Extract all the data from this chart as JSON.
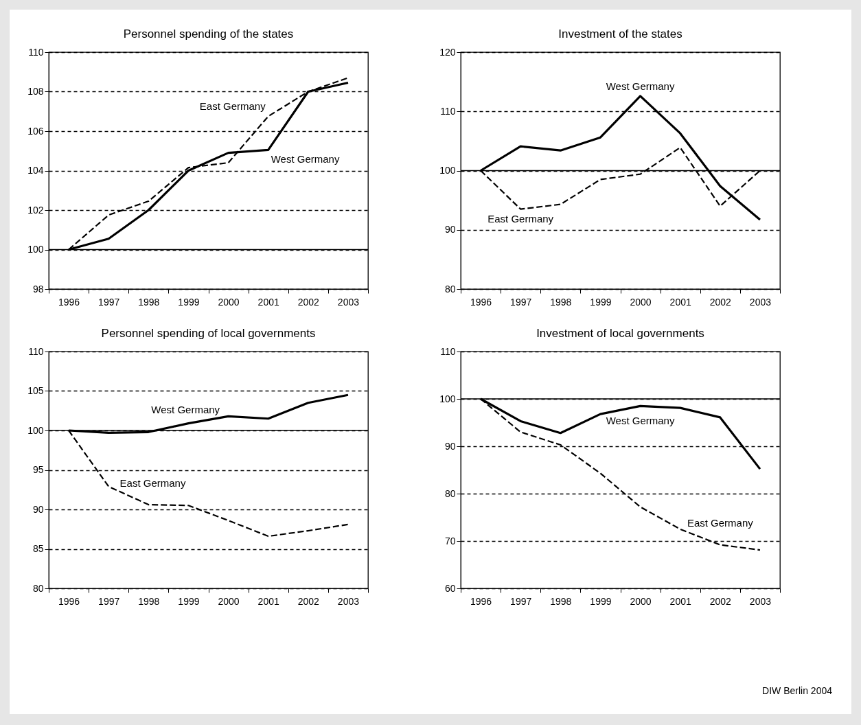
{
  "chart_data": [
    {
      "type": "line",
      "title": "Personnel spending of the states",
      "categories": [
        "1996",
        "1997",
        "1998",
        "1999",
        "2000",
        "2001",
        "2002",
        "2003"
      ],
      "ylim": [
        98,
        110
      ],
      "yticks": [
        98,
        100,
        102,
        104,
        106,
        108,
        110
      ],
      "grid": "y",
      "ref_lines": [
        {
          "axis": "y",
          "value": 100,
          "color": "#000000",
          "line_style": "solid"
        }
      ],
      "series": [
        {
          "name": "West Germany",
          "color": "#000000",
          "line_style": "solid",
          "values": [
            100,
            100.55,
            102.0,
            104.0,
            104.9,
            105.05,
            108.0,
            108.45
          ]
        },
        {
          "name": "East Germany",
          "color": "#000000",
          "line_style": "dashed",
          "values": [
            100,
            101.75,
            102.45,
            104.15,
            104.4,
            106.75,
            108.0,
            108.7
          ]
        }
      ]
    },
    {
      "type": "line",
      "title": "Investment of the states",
      "categories": [
        "1996",
        "1997",
        "1998",
        "1999",
        "2000",
        "2001",
        "2002",
        "2003"
      ],
      "ylim": [
        80,
        120
      ],
      "yticks": [
        80,
        90,
        100,
        110,
        120
      ],
      "grid": "y",
      "ref_lines": [
        {
          "axis": "y",
          "value": 100,
          "color": "#000000",
          "line_style": "solid"
        }
      ],
      "series": [
        {
          "name": "West Germany",
          "color": "#000000",
          "line_style": "solid",
          "values": [
            100,
            104.1,
            103.4,
            105.6,
            112.6,
            106.3,
            97.4,
            91.7
          ]
        },
        {
          "name": "East Germany",
          "color": "#000000",
          "line_style": "dashed",
          "values": [
            100,
            93.5,
            94.3,
            98.5,
            99.4,
            103.9,
            94.0,
            100.0
          ]
        }
      ]
    },
    {
      "type": "line",
      "title": "Personnel spending of local governments",
      "categories": [
        "1996",
        "1997",
        "1998",
        "1999",
        "2000",
        "2001",
        "2002",
        "2003"
      ],
      "ylim": [
        80,
        110
      ],
      "yticks": [
        80,
        85,
        90,
        95,
        100,
        105,
        110
      ],
      "grid": "y",
      "ref_lines": [
        {
          "axis": "y",
          "value": 100,
          "color": "#000000",
          "line_style": "solid"
        }
      ],
      "series": [
        {
          "name": "West Germany",
          "color": "#000000",
          "line_style": "solid",
          "values": [
            100,
            99.7,
            99.8,
            100.9,
            101.8,
            101.5,
            103.5,
            104.5
          ]
        },
        {
          "name": "East Germany",
          "color": "#000000",
          "line_style": "dashed",
          "values": [
            100,
            92.9,
            90.6,
            90.5,
            88.6,
            86.6,
            87.3,
            88.1
          ]
        }
      ]
    },
    {
      "type": "line",
      "title": "Investment of local governments",
      "categories": [
        "1996",
        "1997",
        "1998",
        "1999",
        "2000",
        "2001",
        "2002",
        "2003"
      ],
      "ylim": [
        60,
        110
      ],
      "yticks": [
        60,
        70,
        80,
        90,
        100,
        110
      ],
      "grid": "y",
      "ref_lines": [
        {
          "axis": "y",
          "value": 100,
          "color": "#000000",
          "line_style": "solid"
        }
      ],
      "annotations": [
        "DIW Berlin 2004"
      ],
      "series": [
        {
          "name": "West Germany",
          "color": "#000000",
          "line_style": "solid",
          "values": [
            100,
            95.3,
            92.8,
            96.8,
            98.5,
            98.1,
            96.1,
            85.2
          ]
        },
        {
          "name": "East Germany",
          "color": "#000000",
          "line_style": "dashed",
          "values": [
            100,
            93.0,
            90.3,
            84.3,
            77.2,
            72.5,
            69.2,
            68.1
          ]
        }
      ]
    }
  ]
}
